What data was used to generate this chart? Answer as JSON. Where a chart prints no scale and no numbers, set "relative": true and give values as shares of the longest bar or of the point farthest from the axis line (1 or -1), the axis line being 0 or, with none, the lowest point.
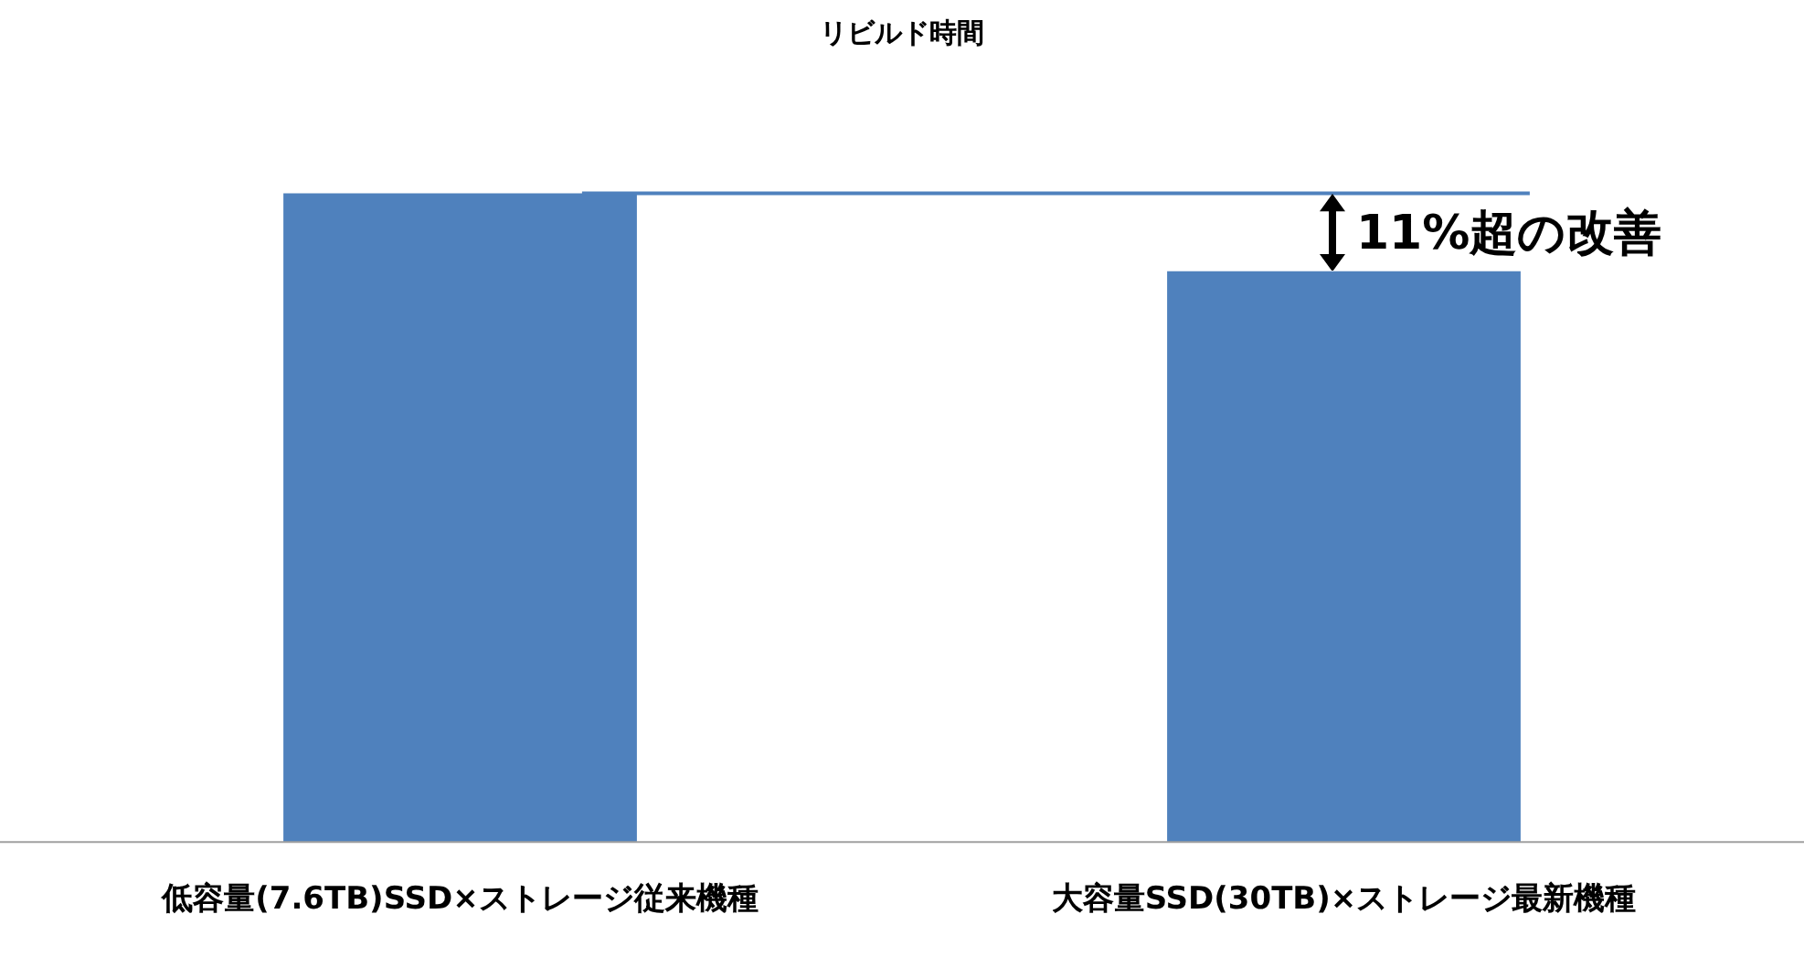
{
  "chart_data": {
    "type": "bar",
    "title": "リビルド時間",
    "relative": true,
    "categories": [
      "低容量(7.6TB)SSD×ストレージ従来機種",
      "大容量SSD(30TB)×ストレージ最新機種"
    ],
    "values": [
      1,
      0.88
    ],
    "color": "#4f81bd",
    "grid": false,
    "legend": false,
    "tick_labels": "x",
    "ref_lines": [
      {
        "axis": "y",
        "value": 1,
        "color": "#4f81bd"
      }
    ],
    "annotations": [
      "11%超の改善"
    ]
  }
}
